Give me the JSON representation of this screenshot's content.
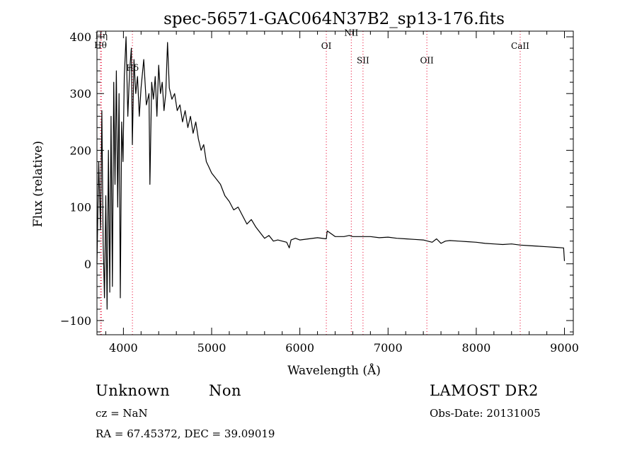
{
  "chart_data": {
    "type": "line",
    "title": "spec-56571-GAC064N37B2_sp13-176.fits",
    "xlabel": "Wavelength (Å)",
    "ylabel": "Flux (relative)",
    "xlim": [
      3700,
      9100
    ],
    "ylim": [
      -125,
      410
    ],
    "xticks": [
      4000,
      5000,
      6000,
      7000,
      8000,
      9000
    ],
    "yticks": [
      -100,
      0,
      100,
      200,
      300,
      400
    ],
    "grid": false,
    "line_color": "#000000",
    "marker_color": "#e8002a",
    "series": [
      {
        "x": [
          3700,
          3720,
          3740,
          3755,
          3770,
          3785,
          3800,
          3815,
          3830,
          3845,
          3860,
          3875,
          3890,
          3905,
          3920,
          3935,
          3950,
          3965,
          3980,
          3995,
          4010,
          4030,
          4050,
          4070,
          4090,
          4101,
          4120,
          4140,
          4160,
          4180,
          4200,
          4230,
          4260,
          4290,
          4300,
          4320,
          4340,
          4360,
          4380,
          4400,
          4420,
          4440,
          4460,
          4480,
          4500,
          4520,
          4550,
          4580,
          4610,
          4640,
          4670,
          4700,
          4730,
          4760,
          4790,
          4820,
          4850,
          4880,
          4910,
          4940,
          4970,
          5000,
          5050,
          5100,
          5150,
          5200,
          5250,
          5300,
          5350,
          5400,
          5450,
          5500,
          5550,
          5600,
          5650,
          5700,
          5750,
          5800,
          5850,
          5880,
          5900,
          5950,
          6000,
          6100,
          6200,
          6300,
          6310,
          6400,
          6500,
          6560,
          6600,
          6700,
          6800,
          6900,
          7000,
          7100,
          7200,
          7300,
          7400,
          7500,
          7550,
          7600,
          7650,
          7700,
          7800,
          7900,
          8000,
          8100,
          8200,
          8300,
          8400,
          8500,
          8600,
          8700,
          8800,
          8900,
          8990,
          9000
        ],
        "y": [
          0,
          180,
          60,
          270,
          40,
          -60,
          120,
          -80,
          200,
          -50,
          260,
          -40,
          320,
          140,
          340,
          100,
          300,
          -60,
          250,
          180,
          330,
          400,
          260,
          340,
          380,
          210,
          360,
          300,
          330,
          260,
          310,
          360,
          280,
          300,
          140,
          320,
          290,
          330,
          260,
          350,
          300,
          320,
          270,
          300,
          390,
          310,
          290,
          300,
          270,
          280,
          250,
          270,
          240,
          260,
          230,
          250,
          220,
          200,
          210,
          180,
          170,
          160,
          150,
          140,
          120,
          110,
          95,
          100,
          85,
          70,
          78,
          65,
          55,
          45,
          50,
          40,
          42,
          40,
          38,
          28,
          42,
          45,
          42,
          44,
          46,
          44,
          58,
          48,
          48,
          50,
          48,
          48,
          48,
          46,
          47,
          45,
          44,
          43,
          42,
          38,
          44,
          36,
          40,
          41,
          40,
          39,
          38,
          36,
          35,
          34,
          35,
          33,
          32,
          31,
          30,
          29,
          28,
          5
        ]
      }
    ],
    "lines": [
      {
        "label": "Hη",
        "x": 3750,
        "label_y": 397
      },
      {
        "label": "Hθ",
        "x": 3740,
        "label_y": 380
      },
      {
        "label": "Hδ",
        "x": 4102,
        "label_y": 340
      },
      {
        "label": "OI",
        "x": 6300,
        "label_y": 379
      },
      {
        "label": "NII",
        "x": 6583,
        "label_y": 402
      },
      {
        "label": "SII",
        "x": 6716,
        "label_y": 353
      },
      {
        "label": "OII",
        "x": 7440,
        "label_y": 353
      },
      {
        "label": "CaII",
        "x": 8498,
        "label_y": 379
      }
    ]
  },
  "info": {
    "class": "Unknown",
    "subclass": "Non",
    "survey": "LAMOST DR2",
    "cz": "cz = NaN",
    "obs_date": "Obs-Date: 20131005",
    "coords": "RA =   67.45372, DEC =   39.09019"
  }
}
